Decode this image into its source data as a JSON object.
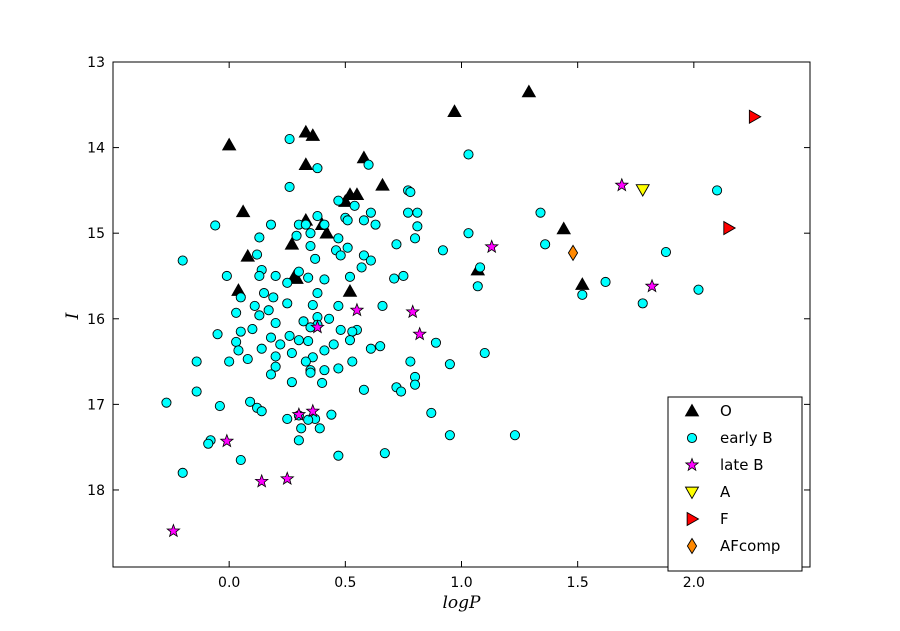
{
  "chart_data": {
    "type": "scatter",
    "title": "",
    "xlabel": "logP",
    "ylabel": "I",
    "xlim": [
      -0.5,
      2.5
    ],
    "ylim": [
      13,
      18.9
    ],
    "y_inverted": true,
    "grid": false,
    "legend_position": "bottom-right",
    "xticks": [
      "0.0",
      "0.5",
      "1.0",
      "1.5",
      "2.0"
    ],
    "xtick_values": [
      0,
      0.5,
      1.0,
      1.5,
      2.0
    ],
    "yticks": [
      "13",
      "14",
      "15",
      "16",
      "17",
      "18"
    ],
    "ytick_values": [
      13,
      14,
      15,
      16,
      17,
      18
    ],
    "series": [
      {
        "name": "O",
        "marker": "triangle-up",
        "color": "#000000",
        "points": [
          [
            1.29,
            13.35
          ],
          [
            0.97,
            13.58
          ],
          [
            0.0,
            13.97
          ],
          [
            0.33,
            13.82
          ],
          [
            0.36,
            13.86
          ],
          [
            0.58,
            14.12
          ],
          [
            0.33,
            14.2
          ],
          [
            0.66,
            14.44
          ],
          [
            0.52,
            14.55
          ],
          [
            0.55,
            14.55
          ],
          [
            0.5,
            14.63
          ],
          [
            0.06,
            14.75
          ],
          [
            0.33,
            14.85
          ],
          [
            1.44,
            14.95
          ],
          [
            0.4,
            14.9
          ],
          [
            0.42,
            15.0
          ],
          [
            0.27,
            15.13
          ],
          [
            0.08,
            15.27
          ],
          [
            1.07,
            15.43
          ],
          [
            0.28,
            15.51
          ],
          [
            0.29,
            15.53
          ],
          [
            0.04,
            15.67
          ],
          [
            1.52,
            15.6
          ],
          [
            0.52,
            15.68
          ]
        ]
      },
      {
        "name": "early B",
        "marker": "circle",
        "color": "#00ffff",
        "points": [
          [
            0.26,
            13.9
          ],
          [
            1.03,
            14.08
          ],
          [
            0.6,
            14.2
          ],
          [
            0.38,
            14.24
          ],
          [
            0.26,
            14.46
          ],
          [
            0.77,
            14.5
          ],
          [
            0.78,
            14.52
          ],
          [
            2.1,
            14.5
          ],
          [
            0.47,
            14.62
          ],
          [
            0.54,
            14.68
          ],
          [
            0.61,
            14.76
          ],
          [
            0.77,
            14.76
          ],
          [
            0.81,
            14.76
          ],
          [
            1.34,
            14.76
          ],
          [
            0.38,
            14.8
          ],
          [
            0.5,
            14.82
          ],
          [
            0.51,
            14.85
          ],
          [
            0.58,
            14.85
          ],
          [
            0.3,
            14.9
          ],
          [
            0.33,
            14.9
          ],
          [
            0.41,
            14.9
          ],
          [
            0.63,
            14.9
          ],
          [
            0.81,
            14.92
          ],
          [
            -0.06,
            14.91
          ],
          [
            0.18,
            14.9
          ],
          [
            0.35,
            15.0
          ],
          [
            0.29,
            15.03
          ],
          [
            0.13,
            15.05
          ],
          [
            1.03,
            15.0
          ],
          [
            0.47,
            15.06
          ],
          [
            0.8,
            15.06
          ],
          [
            1.36,
            15.13
          ],
          [
            0.72,
            15.13
          ],
          [
            0.35,
            15.15
          ],
          [
            0.51,
            15.17
          ],
          [
            0.46,
            15.2
          ],
          [
            0.92,
            15.2
          ],
          [
            0.12,
            15.25
          ],
          [
            0.58,
            15.26
          ],
          [
            1.88,
            15.22
          ],
          [
            0.48,
            15.26
          ],
          [
            0.37,
            15.3
          ],
          [
            0.61,
            15.32
          ],
          [
            -0.2,
            15.32
          ],
          [
            1.08,
            15.4
          ],
          [
            0.57,
            15.4
          ],
          [
            0.14,
            15.43
          ],
          [
            0.3,
            15.45
          ],
          [
            -0.01,
            15.5
          ],
          [
            0.13,
            15.5
          ],
          [
            0.75,
            15.5
          ],
          [
            0.52,
            15.51
          ],
          [
            0.34,
            15.52
          ],
          [
            0.71,
            15.53
          ],
          [
            0.41,
            15.54
          ],
          [
            0.2,
            15.5
          ],
          [
            1.62,
            15.57
          ],
          [
            0.25,
            15.58
          ],
          [
            1.07,
            15.62
          ],
          [
            2.02,
            15.66
          ],
          [
            0.15,
            15.7
          ],
          [
            0.38,
            15.7
          ],
          [
            1.52,
            15.72
          ],
          [
            0.05,
            15.75
          ],
          [
            0.19,
            15.75
          ],
          [
            1.78,
            15.82
          ],
          [
            0.25,
            15.82
          ],
          [
            0.36,
            15.84
          ],
          [
            0.11,
            15.85
          ],
          [
            0.47,
            15.85
          ],
          [
            0.66,
            15.85
          ],
          [
            0.17,
            15.9
          ],
          [
            0.03,
            15.93
          ],
          [
            0.13,
            15.96
          ],
          [
            0.38,
            15.98
          ],
          [
            0.43,
            16.0
          ],
          [
            0.32,
            16.03
          ],
          [
            0.2,
            16.05
          ],
          [
            0.38,
            16.07
          ],
          [
            0.35,
            16.1
          ],
          [
            0.1,
            16.12
          ],
          [
            0.48,
            16.13
          ],
          [
            0.55,
            16.13
          ],
          [
            0.53,
            16.15
          ],
          [
            0.05,
            16.15
          ],
          [
            -0.05,
            16.18
          ],
          [
            0.26,
            16.2
          ],
          [
            0.18,
            16.22
          ],
          [
            0.3,
            16.25
          ],
          [
            0.52,
            16.25
          ],
          [
            0.34,
            16.26
          ],
          [
            0.03,
            16.27
          ],
          [
            0.45,
            16.3
          ],
          [
            0.89,
            16.28
          ],
          [
            0.22,
            16.3
          ],
          [
            0.65,
            16.32
          ],
          [
            0.14,
            16.35
          ],
          [
            0.61,
            16.35
          ],
          [
            0.41,
            16.37
          ],
          [
            0.04,
            16.37
          ],
          [
            1.1,
            16.4
          ],
          [
            0.27,
            16.4
          ],
          [
            0.2,
            16.44
          ],
          [
            0.36,
            16.45
          ],
          [
            0.53,
            16.5
          ],
          [
            -0.14,
            16.5
          ],
          [
            0.0,
            16.5
          ],
          [
            0.33,
            16.5
          ],
          [
            0.08,
            16.47
          ],
          [
            0.95,
            16.53
          ],
          [
            0.78,
            16.5
          ],
          [
            0.2,
            16.56
          ],
          [
            0.47,
            16.58
          ],
          [
            0.41,
            16.6
          ],
          [
            0.35,
            16.6
          ],
          [
            0.35,
            16.63
          ],
          [
            0.18,
            16.65
          ],
          [
            0.8,
            16.68
          ],
          [
            0.27,
            16.74
          ],
          [
            0.4,
            16.75
          ],
          [
            0.8,
            16.77
          ],
          [
            0.72,
            16.8
          ],
          [
            0.58,
            16.83
          ],
          [
            0.74,
            16.85
          ],
          [
            -0.14,
            16.85
          ],
          [
            0.09,
            16.97
          ],
          [
            -0.27,
            16.98
          ],
          [
            0.12,
            17.04
          ],
          [
            -0.04,
            17.02
          ],
          [
            0.14,
            17.08
          ],
          [
            0.87,
            17.1
          ],
          [
            0.44,
            17.12
          ],
          [
            0.3,
            17.13
          ],
          [
            0.37,
            17.17
          ],
          [
            0.34,
            17.18
          ],
          [
            0.25,
            17.17
          ],
          [
            0.31,
            17.28
          ],
          [
            0.39,
            17.28
          ],
          [
            0.95,
            17.36
          ],
          [
            1.23,
            17.36
          ],
          [
            -0.08,
            17.42
          ],
          [
            0.3,
            17.42
          ],
          [
            -0.09,
            17.46
          ],
          [
            0.67,
            17.57
          ],
          [
            0.47,
            17.6
          ],
          [
            0.05,
            17.65
          ],
          [
            -0.2,
            17.8
          ]
        ]
      },
      {
        "name": "late B",
        "marker": "star",
        "color": "#ff00ff",
        "points": [
          [
            1.69,
            14.44
          ],
          [
            1.13,
            15.16
          ],
          [
            1.82,
            15.62
          ],
          [
            0.55,
            15.9
          ],
          [
            0.79,
            15.92
          ],
          [
            0.38,
            16.1
          ],
          [
            0.82,
            16.18
          ],
          [
            0.36,
            17.08
          ],
          [
            0.3,
            17.12
          ],
          [
            -0.01,
            17.43
          ],
          [
            0.25,
            17.87
          ],
          [
            0.14,
            17.9
          ],
          [
            -0.24,
            18.48
          ]
        ]
      },
      {
        "name": "A",
        "marker": "triangle-down",
        "color": "#ffff00",
        "points": [
          [
            1.78,
            14.49
          ]
        ]
      },
      {
        "name": "F",
        "marker": "triangle-right",
        "color": "#ff0000",
        "points": [
          [
            2.26,
            13.64
          ],
          [
            2.15,
            14.94
          ]
        ]
      },
      {
        "name": "AFcomp",
        "marker": "diamond",
        "color": "#ff8800",
        "points": [
          [
            1.48,
            15.23
          ]
        ]
      }
    ]
  }
}
